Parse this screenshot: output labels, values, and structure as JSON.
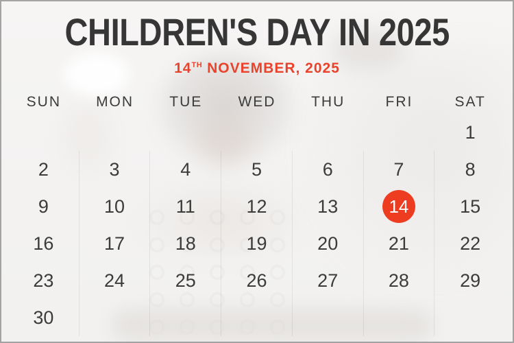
{
  "header": {
    "title": "CHILDREN'S DAY IN 2025",
    "subtitle": {
      "day": "14",
      "ordinal": "TH",
      "rest": "NOVEMBER, 2025"
    }
  },
  "calendar": {
    "month": "November",
    "year": "2025",
    "weekdays": [
      "SUN",
      "MON",
      "TUE",
      "WED",
      "THU",
      "FRI",
      "SAT"
    ],
    "weeks": [
      [
        "",
        "",
        "",
        "",
        "",
        "",
        "1"
      ],
      [
        "2",
        "3",
        "4",
        "5",
        "6",
        "7",
        "8"
      ],
      [
        "9",
        "10",
        "11",
        "12",
        "13",
        "14",
        "15"
      ],
      [
        "16",
        "17",
        "18",
        "19",
        "20",
        "21",
        "22"
      ],
      [
        "23",
        "24",
        "25",
        "26",
        "27",
        "28",
        "29"
      ],
      [
        "30",
        "",
        "",
        "",
        "",
        "",
        ""
      ]
    ],
    "highlighted_date": "14"
  },
  "colors": {
    "accent": "#EE3C20",
    "subtitle_red": "#E9432C",
    "title_color": "#363636",
    "date_text": "#3B3B3B",
    "highlight_text": "#FFFFFF"
  }
}
